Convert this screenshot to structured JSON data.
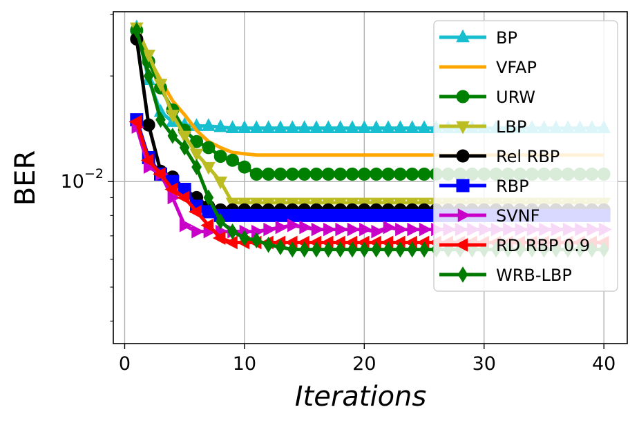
{
  "chart_data": {
    "type": "line",
    "title": "",
    "xlabel": "Iterations",
    "ylabel": "BER",
    "xlim": [
      -0.95,
      41.95
    ],
    "yscale": "log",
    "ylim": [
      0.00345,
      0.0305
    ],
    "x_ticks": [
      0,
      10,
      20,
      30,
      40
    ],
    "x_tick_labels": [
      "0",
      "10",
      "20",
      "30",
      "40"
    ],
    "y_ticks": [
      0.01
    ],
    "y_tick_labels": [
      {
        "base": "10",
        "exp": "−2"
      }
    ],
    "grid": true,
    "legend_position": "upper right",
    "x": [
      1,
      2,
      3,
      4,
      5,
      6,
      7,
      8,
      9,
      10,
      11,
      12,
      13,
      14,
      15,
      16,
      17,
      18,
      19,
      20,
      21,
      22,
      23,
      24,
      25,
      26,
      27,
      28,
      29,
      30,
      31,
      32,
      33,
      34,
      35,
      36,
      37,
      38,
      39,
      40
    ],
    "series": [
      {
        "name": "BP",
        "color": "#17becf",
        "marker": "triangle-up",
        "values": [
          0.0275,
          0.0195,
          0.0158,
          0.0148,
          0.0145,
          0.0144,
          0.0144,
          0.0143,
          0.0142,
          0.0142,
          0.0142,
          0.0142,
          0.0142,
          0.0142,
          0.0142,
          0.0142,
          0.0142,
          0.0142,
          0.0142,
          0.0142,
          0.0142,
          0.0142,
          0.0142,
          0.0142,
          0.0142,
          0.0142,
          0.0142,
          0.0142,
          0.0142,
          0.0142,
          0.0142,
          0.0142,
          0.0142,
          0.0142,
          0.0142,
          0.0142,
          0.0142,
          0.0142,
          0.0142,
          0.0142
        ]
      },
      {
        "name": "VFAP",
        "color": "#ffa500",
        "marker": "none",
        "values": [
          0.0275,
          0.0225,
          0.0195,
          0.017,
          0.0155,
          0.014,
          0.013,
          0.0125,
          0.0121,
          0.012,
          0.0119,
          0.0119,
          0.0119,
          0.0119,
          0.0119,
          0.0119,
          0.0119,
          0.0119,
          0.0119,
          0.0119,
          0.0119,
          0.0119,
          0.0119,
          0.0119,
          0.0119,
          0.0119,
          0.0119,
          0.0119,
          0.0119,
          0.0119,
          0.0119,
          0.0119,
          0.0119,
          0.0119,
          0.0119,
          0.0119,
          0.0119,
          0.0119,
          0.0119,
          0.0119
        ]
      },
      {
        "name": "URW",
        "color": "#008000",
        "marker": "circle",
        "values": [
          0.027,
          0.022,
          0.0185,
          0.016,
          0.014,
          0.013,
          0.0125,
          0.0118,
          0.0115,
          0.011,
          0.0105,
          0.0105,
          0.0105,
          0.0105,
          0.0105,
          0.0105,
          0.0105,
          0.0105,
          0.0105,
          0.0105,
          0.0105,
          0.0105,
          0.0105,
          0.0105,
          0.0105,
          0.0105,
          0.0105,
          0.0105,
          0.0105,
          0.0105,
          0.0105,
          0.0105,
          0.0105,
          0.0105,
          0.0105,
          0.0105,
          0.0105,
          0.0105,
          0.0105,
          0.0105
        ]
      },
      {
        "name": "LBP",
        "color": "#bcbd22",
        "marker": "triangle-down",
        "values": [
          0.0275,
          0.023,
          0.019,
          0.0155,
          0.0135,
          0.012,
          0.011,
          0.01,
          0.0087,
          0.0087,
          0.0087,
          0.0087,
          0.0087,
          0.0087,
          0.0087,
          0.0087,
          0.0087,
          0.0087,
          0.0087,
          0.0087,
          0.0087,
          0.0087,
          0.0087,
          0.0087,
          0.0087,
          0.0087,
          0.0087,
          0.0087,
          0.0087,
          0.0087,
          0.0087,
          0.0087,
          0.0087,
          0.0087,
          0.0087,
          0.0087,
          0.0087,
          0.0087,
          0.0087,
          0.0087
        ]
      },
      {
        "name": "Rel RBP",
        "color": "#000000",
        "marker": "circle",
        "values": [
          0.0255,
          0.0145,
          0.0107,
          0.0103,
          0.0095,
          0.009,
          0.0085,
          0.0083,
          0.0083,
          0.0083,
          0.0083,
          0.0083,
          0.0083,
          0.0083,
          0.0083,
          0.0083,
          0.0083,
          0.0083,
          0.0083,
          0.0083,
          0.0083,
          0.0083,
          0.0083,
          0.0083,
          0.0083,
          0.0083,
          0.0083,
          0.0083,
          0.0083,
          0.0083,
          0.0083,
          0.0083,
          0.0083,
          0.0083,
          0.0083,
          0.0083,
          0.0083,
          0.0083,
          0.0083,
          0.0083
        ]
      },
      {
        "name": "RBP",
        "color": "#0000ff",
        "marker": "square",
        "values": [
          0.015,
          0.0117,
          0.0105,
          0.01,
          0.0095,
          0.0085,
          0.0082,
          0.008,
          0.008,
          0.008,
          0.008,
          0.008,
          0.008,
          0.008,
          0.008,
          0.008,
          0.008,
          0.008,
          0.008,
          0.008,
          0.008,
          0.008,
          0.008,
          0.008,
          0.008,
          0.008,
          0.008,
          0.008,
          0.008,
          0.008,
          0.008,
          0.008,
          0.008,
          0.008,
          0.008,
          0.008,
          0.008,
          0.008,
          0.008,
          0.008
        ]
      },
      {
        "name": "SVNF",
        "color": "#c800c8",
        "marker": "triangle-right",
        "values": [
          0.0143,
          0.011,
          0.0105,
          0.009,
          0.0075,
          0.0072,
          0.0072,
          0.0072,
          0.0072,
          0.0072,
          0.0072,
          0.0073,
          0.0074,
          0.0075,
          0.0074,
          0.0073,
          0.0073,
          0.0073,
          0.0073,
          0.0073,
          0.0072,
          0.0074,
          0.0073,
          0.0073,
          0.0073,
          0.0073,
          0.0073,
          0.0073,
          0.0073,
          0.0073,
          0.0073,
          0.0073,
          0.0073,
          0.0073,
          0.0073,
          0.0073,
          0.0073,
          0.0073,
          0.0073,
          0.0073
        ]
      },
      {
        "name": "RD RBP 0.9",
        "color": "#ff0000",
        "marker": "triangle-left",
        "values": [
          0.0148,
          0.0115,
          0.0105,
          0.0095,
          0.009,
          0.0082,
          0.0075,
          0.0069,
          0.0067,
          0.0067,
          0.0067,
          0.0067,
          0.0067,
          0.0067,
          0.0067,
          0.0067,
          0.0067,
          0.0067,
          0.0067,
          0.0067,
          0.0067,
          0.0067,
          0.0067,
          0.0067,
          0.0067,
          0.0067,
          0.0067,
          0.0067,
          0.0067,
          0.0067,
          0.0067,
          0.0067,
          0.0067,
          0.0067,
          0.0067,
          0.0067,
          0.0067,
          0.0067,
          0.0067,
          0.0067
        ]
      },
      {
        "name": "WRB-LBP",
        "color": "#007a00",
        "marker": "diamond",
        "values": [
          0.027,
          0.02,
          0.015,
          0.0135,
          0.0125,
          0.011,
          0.009,
          0.0077,
          0.0072,
          0.0069,
          0.0068,
          0.0066,
          0.0065,
          0.0064,
          0.0064,
          0.0064,
          0.0064,
          0.0064,
          0.0064,
          0.0064,
          0.0064,
          0.0064,
          0.0064,
          0.0064,
          0.0064,
          0.0064,
          0.0064,
          0.0064,
          0.0064,
          0.0064,
          0.0064,
          0.0064,
          0.0064,
          0.0064,
          0.0064,
          0.0064,
          0.0064,
          0.0064,
          0.0064,
          0.0064
        ]
      }
    ]
  }
}
